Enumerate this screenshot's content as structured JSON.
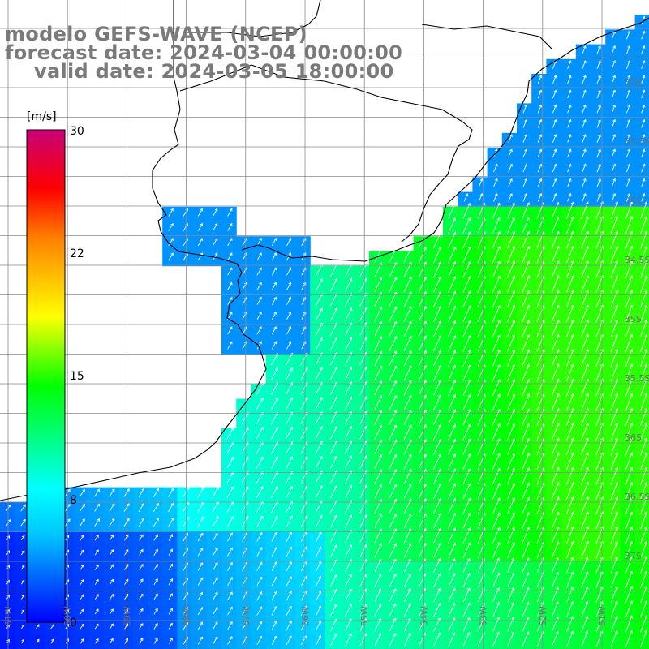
{
  "header": {
    "line1": "modelo GEFS-WAVE (NCEP)",
    "line2": "forecast date: 2024-03-04 00:00:00",
    "line3": "valid date: 2024-03-05 18:00:00"
  },
  "colorbar": {
    "unit": "[m/s]",
    "ticks": [
      "30",
      "22",
      "15",
      "8",
      "0"
    ],
    "range": [
      0,
      30
    ],
    "colors": [
      "#0000ff",
      "#00c8ff",
      "#00ffff",
      "#00ff00",
      "#ffff00",
      "#ff8000",
      "#ff0000",
      "#c80078"
    ]
  },
  "map": {
    "variable": "wind speed and direction",
    "longitude_labels": [
      "61W",
      "60W",
      "59W",
      "58W",
      "57W",
      "56W",
      "55W",
      "54W",
      "53W",
      "52W",
      "51W"
    ],
    "latitude_labels": [
      "33S",
      "33.5S",
      "34S",
      "34.5S",
      "35S",
      "35.5S",
      "36S",
      "36.5S",
      "37S"
    ],
    "land_color": "#ffffff",
    "coastline_color": "#000000",
    "grid_color": "#888888"
  }
}
